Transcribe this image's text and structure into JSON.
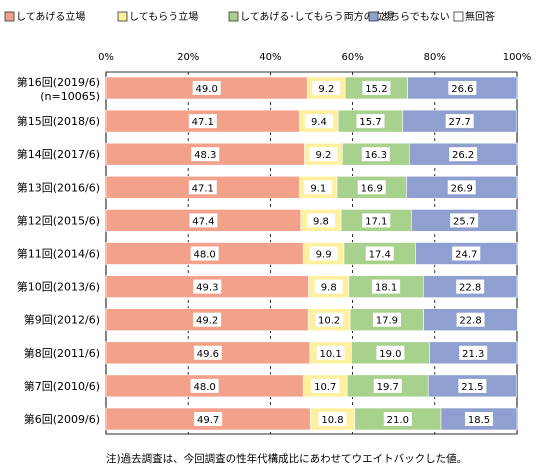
{
  "chart_data": {
    "type": "bar",
    "orientation": "horizontal",
    "stacked": true,
    "percent": true,
    "xlim": [
      0,
      100
    ],
    "x_ticks": [
      "0%",
      "20%",
      "40%",
      "60%",
      "80%",
      "100%"
    ],
    "legend_position": "top",
    "grid": "vertical",
    "categories": [
      [
        "第16回(2019/6)",
        "(n=10065)"
      ],
      [
        "第15回(2018/6)"
      ],
      [
        "第14回(2017/6)"
      ],
      [
        "第13回(2016/6)"
      ],
      [
        "第12回(2015/6)"
      ],
      [
        "第11回(2014/6)"
      ],
      [
        "第10回(2013/6)"
      ],
      [
        "第9回(2012/6)"
      ],
      [
        "第8回(2011/6)"
      ],
      [
        "第7回(2010/6)"
      ],
      [
        "第6回(2009/6)"
      ]
    ],
    "series": [
      {
        "name": "してあげる立場",
        "color": "#f4a18c",
        "values": [
          49.0,
          47.1,
          48.3,
          47.1,
          47.4,
          48.0,
          49.3,
          49.2,
          49.6,
          48.0,
          49.7
        ]
      },
      {
        "name": "してもらう立場",
        "color": "#fff0a0",
        "values": [
          9.2,
          9.4,
          9.2,
          9.1,
          9.8,
          9.9,
          9.8,
          10.2,
          10.1,
          10.7,
          10.8
        ]
      },
      {
        "name": "してあげる･してもらう両方の立場",
        "color": "#a9d18e",
        "values": [
          15.2,
          15.7,
          16.3,
          16.9,
          17.1,
          17.4,
          18.1,
          17.9,
          19.0,
          19.7,
          21.0
        ]
      },
      {
        "name": "どちらでもない",
        "color": "#8e9fd0",
        "values": [
          26.6,
          27.7,
          26.2,
          26.9,
          25.7,
          24.7,
          22.8,
          22.8,
          21.3,
          21.5,
          18.5
        ]
      },
      {
        "name": "無回答",
        "color": "#ffffff",
        "values": [
          0,
          0,
          0,
          0,
          0,
          0,
          0,
          0,
          0,
          0,
          0
        ]
      }
    ],
    "note": "注)過去調査は、今回調査の性年代構成比にあわせてウエイトバックした値。"
  }
}
